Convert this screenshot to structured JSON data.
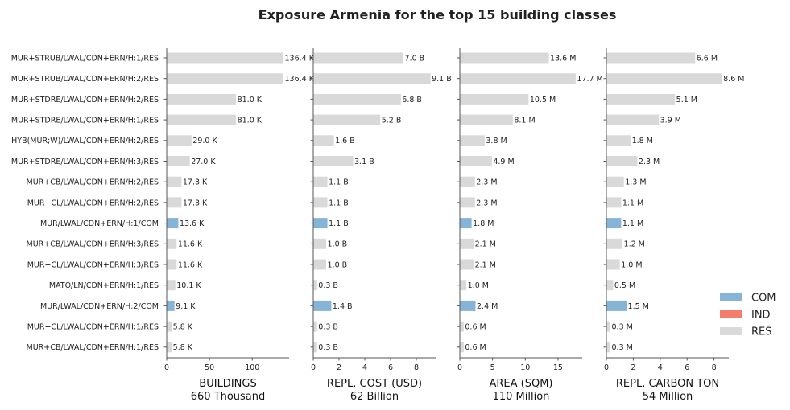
{
  "chart_data": {
    "type": "bar",
    "orientation": "horizontal",
    "title": "Exposure Armenia for the top 15 building classes",
    "categories": [
      "MUR+STRUB/LWAL/CDN+ERN/H:1/RES",
      "MUR+STRUB/LWAL/CDN+ERN/H:2/RES",
      "MUR+STDRE/LWAL/CDN+ERN/H:2/RES",
      "MUR+STDRE/LWAL/CDN+ERN/H:1/RES",
      "HYB(MUR;W)/LWAL/CDN+ERN/H:2/RES",
      "MUR+STDRE/LWAL/CDN+ERN/H:3/RES",
      "MUR+CB/LWAL/CDN+ERN/H:2/RES",
      "MUR+CL/LWAL/CDN+ERN/H:2/RES",
      "MUR/LWAL/CDN+ERN/H:1/COM",
      "MUR+CB/LWAL/CDN+ERN/H:3/RES",
      "MUR+CL/LWAL/CDN+ERN/H:3/RES",
      "MATO/LN/CDN+ERN/H:1/RES",
      "MUR/LWAL/CDN+ERN/H:2/COM",
      "MUR+CL/LWAL/CDN+ERN/H:1/RES",
      "MUR+CB/LWAL/CDN+ERN/H:1/RES"
    ],
    "occupancy": [
      "RES",
      "RES",
      "RES",
      "RES",
      "RES",
      "RES",
      "RES",
      "RES",
      "COM",
      "RES",
      "RES",
      "RES",
      "COM",
      "RES",
      "RES"
    ],
    "colors": {
      "COM": "#86b4d6",
      "IND": "#f47e6c",
      "RES": "#d9d9d9"
    },
    "legend": {
      "position": "right",
      "entries": [
        "COM",
        "IND",
        "RES"
      ]
    },
    "grid": false,
    "panels": [
      {
        "xlabel": "BUILDINGS",
        "total": "660 Thousand",
        "xlim": [
          0,
          143
        ],
        "ticks": [
          0,
          50,
          100
        ],
        "values": [
          136.4,
          136.4,
          81.0,
          81.0,
          29.0,
          27.0,
          17.3,
          17.3,
          13.6,
          11.6,
          11.6,
          10.1,
          9.1,
          5.8,
          5.8
        ],
        "labels": [
          "136.4 K",
          "136.4 K",
          "81.0 K",
          "81.0 K",
          "29.0 K",
          "27.0 K",
          "17.3 K",
          "17.3 K",
          "13.6 K",
          "11.6 K",
          "11.6 K",
          "10.1 K",
          "9.1 K",
          "5.8 K",
          "5.8 K"
        ]
      },
      {
        "xlabel": "REPL. COST (USD)",
        "total": "62 Billion",
        "xlim": [
          0,
          9.5
        ],
        "ticks": [
          0,
          2,
          4,
          6,
          8
        ],
        "values": [
          7.0,
          9.1,
          6.8,
          5.2,
          1.6,
          3.1,
          1.1,
          1.1,
          1.1,
          1.0,
          1.0,
          0.3,
          1.4,
          0.3,
          0.3
        ],
        "labels": [
          "7.0 B",
          "9.1 B",
          "6.8 B",
          "5.2 B",
          "1.6 B",
          "3.1 B",
          "1.1 B",
          "1.1 B",
          "1.1 B",
          "1.0 B",
          "1.0 B",
          "0.3 B",
          "1.4 B",
          "0.3 B",
          "0.3 B"
        ]
      },
      {
        "xlabel": "AREA (SQM)",
        "total": "110 Million",
        "xlim": [
          0,
          18.7
        ],
        "ticks": [
          0,
          5,
          10,
          15
        ],
        "values": [
          13.6,
          17.7,
          10.5,
          8.1,
          3.8,
          4.9,
          2.3,
          2.3,
          1.8,
          2.1,
          2.1,
          1.0,
          2.4,
          0.6,
          0.6
        ],
        "labels": [
          "13.6 M",
          "17.7 M",
          "10.5 M",
          "8.1 M",
          "3.8 M",
          "4.9 M",
          "2.3 M",
          "2.3 M",
          "1.8 M",
          "2.1 M",
          "2.1 M",
          "1.0 M",
          "2.4 M",
          "0.6 M",
          "0.6 M"
        ]
      },
      {
        "xlabel": "REPL. CARBON TON",
        "total": "54 Million",
        "xlim": [
          0,
          9.1
        ],
        "ticks": [
          0,
          2,
          4,
          6,
          8
        ],
        "values": [
          6.6,
          8.6,
          5.1,
          3.9,
          1.8,
          2.3,
          1.3,
          1.1,
          1.1,
          1.2,
          1.0,
          0.5,
          1.5,
          0.3,
          0.3
        ],
        "labels": [
          "6.6 M",
          "8.6 M",
          "5.1 M",
          "3.9 M",
          "1.8 M",
          "2.3 M",
          "1.3 M",
          "1.1 M",
          "1.1 M",
          "1.2 M",
          "1.0 M",
          "0.5 M",
          "1.5 M",
          "0.3 M",
          "0.3 M"
        ]
      }
    ]
  }
}
